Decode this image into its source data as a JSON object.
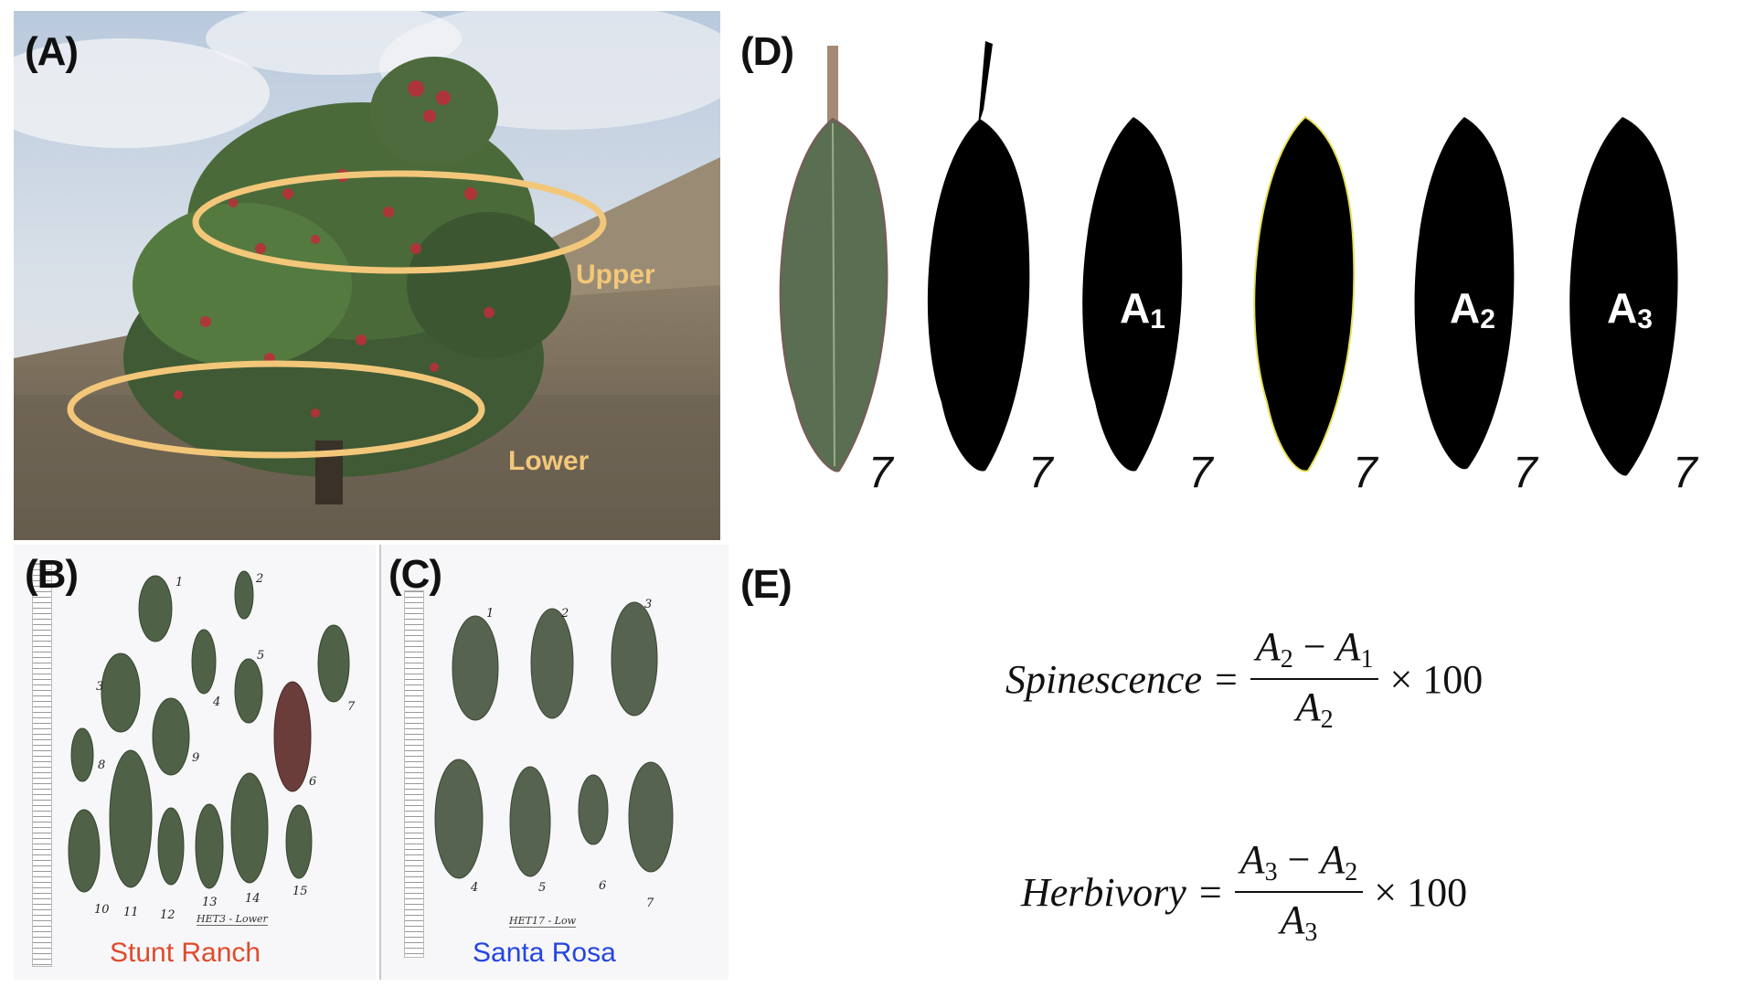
{
  "panels": {
    "a": {
      "label": "(A)",
      "zones": {
        "upper": "Upper",
        "lower": "Lower"
      },
      "colors": {
        "zone_outline": "#f3c77a"
      }
    },
    "b": {
      "label": "(B)",
      "site": "Stunt Ranch",
      "site_color": "#e04a2c",
      "tag": "HET3 - Lower",
      "leaf_numbers": [
        "1",
        "2",
        "3",
        "4",
        "5",
        "6",
        "7",
        "8",
        "9",
        "10",
        "11",
        "12",
        "13",
        "14",
        "15"
      ]
    },
    "c": {
      "label": "(C)",
      "site": "Santa Rosa",
      "site_color": "#2545e0",
      "tag": "HET17 - Low",
      "leaf_numbers": [
        "1",
        "2",
        "3",
        "4",
        "5",
        "6",
        "7"
      ]
    },
    "d": {
      "label": "(D)",
      "sequence_number": "7",
      "area_labels": {
        "a1": {
          "base": "A",
          "sub": "1"
        },
        "a2": {
          "base": "A",
          "sub": "2"
        },
        "a3": {
          "base": "A",
          "sub": "3"
        }
      }
    },
    "e": {
      "label": "(E)",
      "spinescence": {
        "lhs": "Spinescence",
        "num_a": "A",
        "num_a_sub": "2",
        "minus": "−",
        "num_b": "A",
        "num_b_sub": "1",
        "den": "A",
        "den_sub": "2",
        "times": "× 100"
      },
      "herbivory": {
        "lhs": "Herbivory",
        "num_a": "A",
        "num_a_sub": "3",
        "minus": "−",
        "num_b": "A",
        "num_b_sub": "2",
        "den": "A",
        "den_sub": "3",
        "times": "× 100"
      }
    }
  }
}
